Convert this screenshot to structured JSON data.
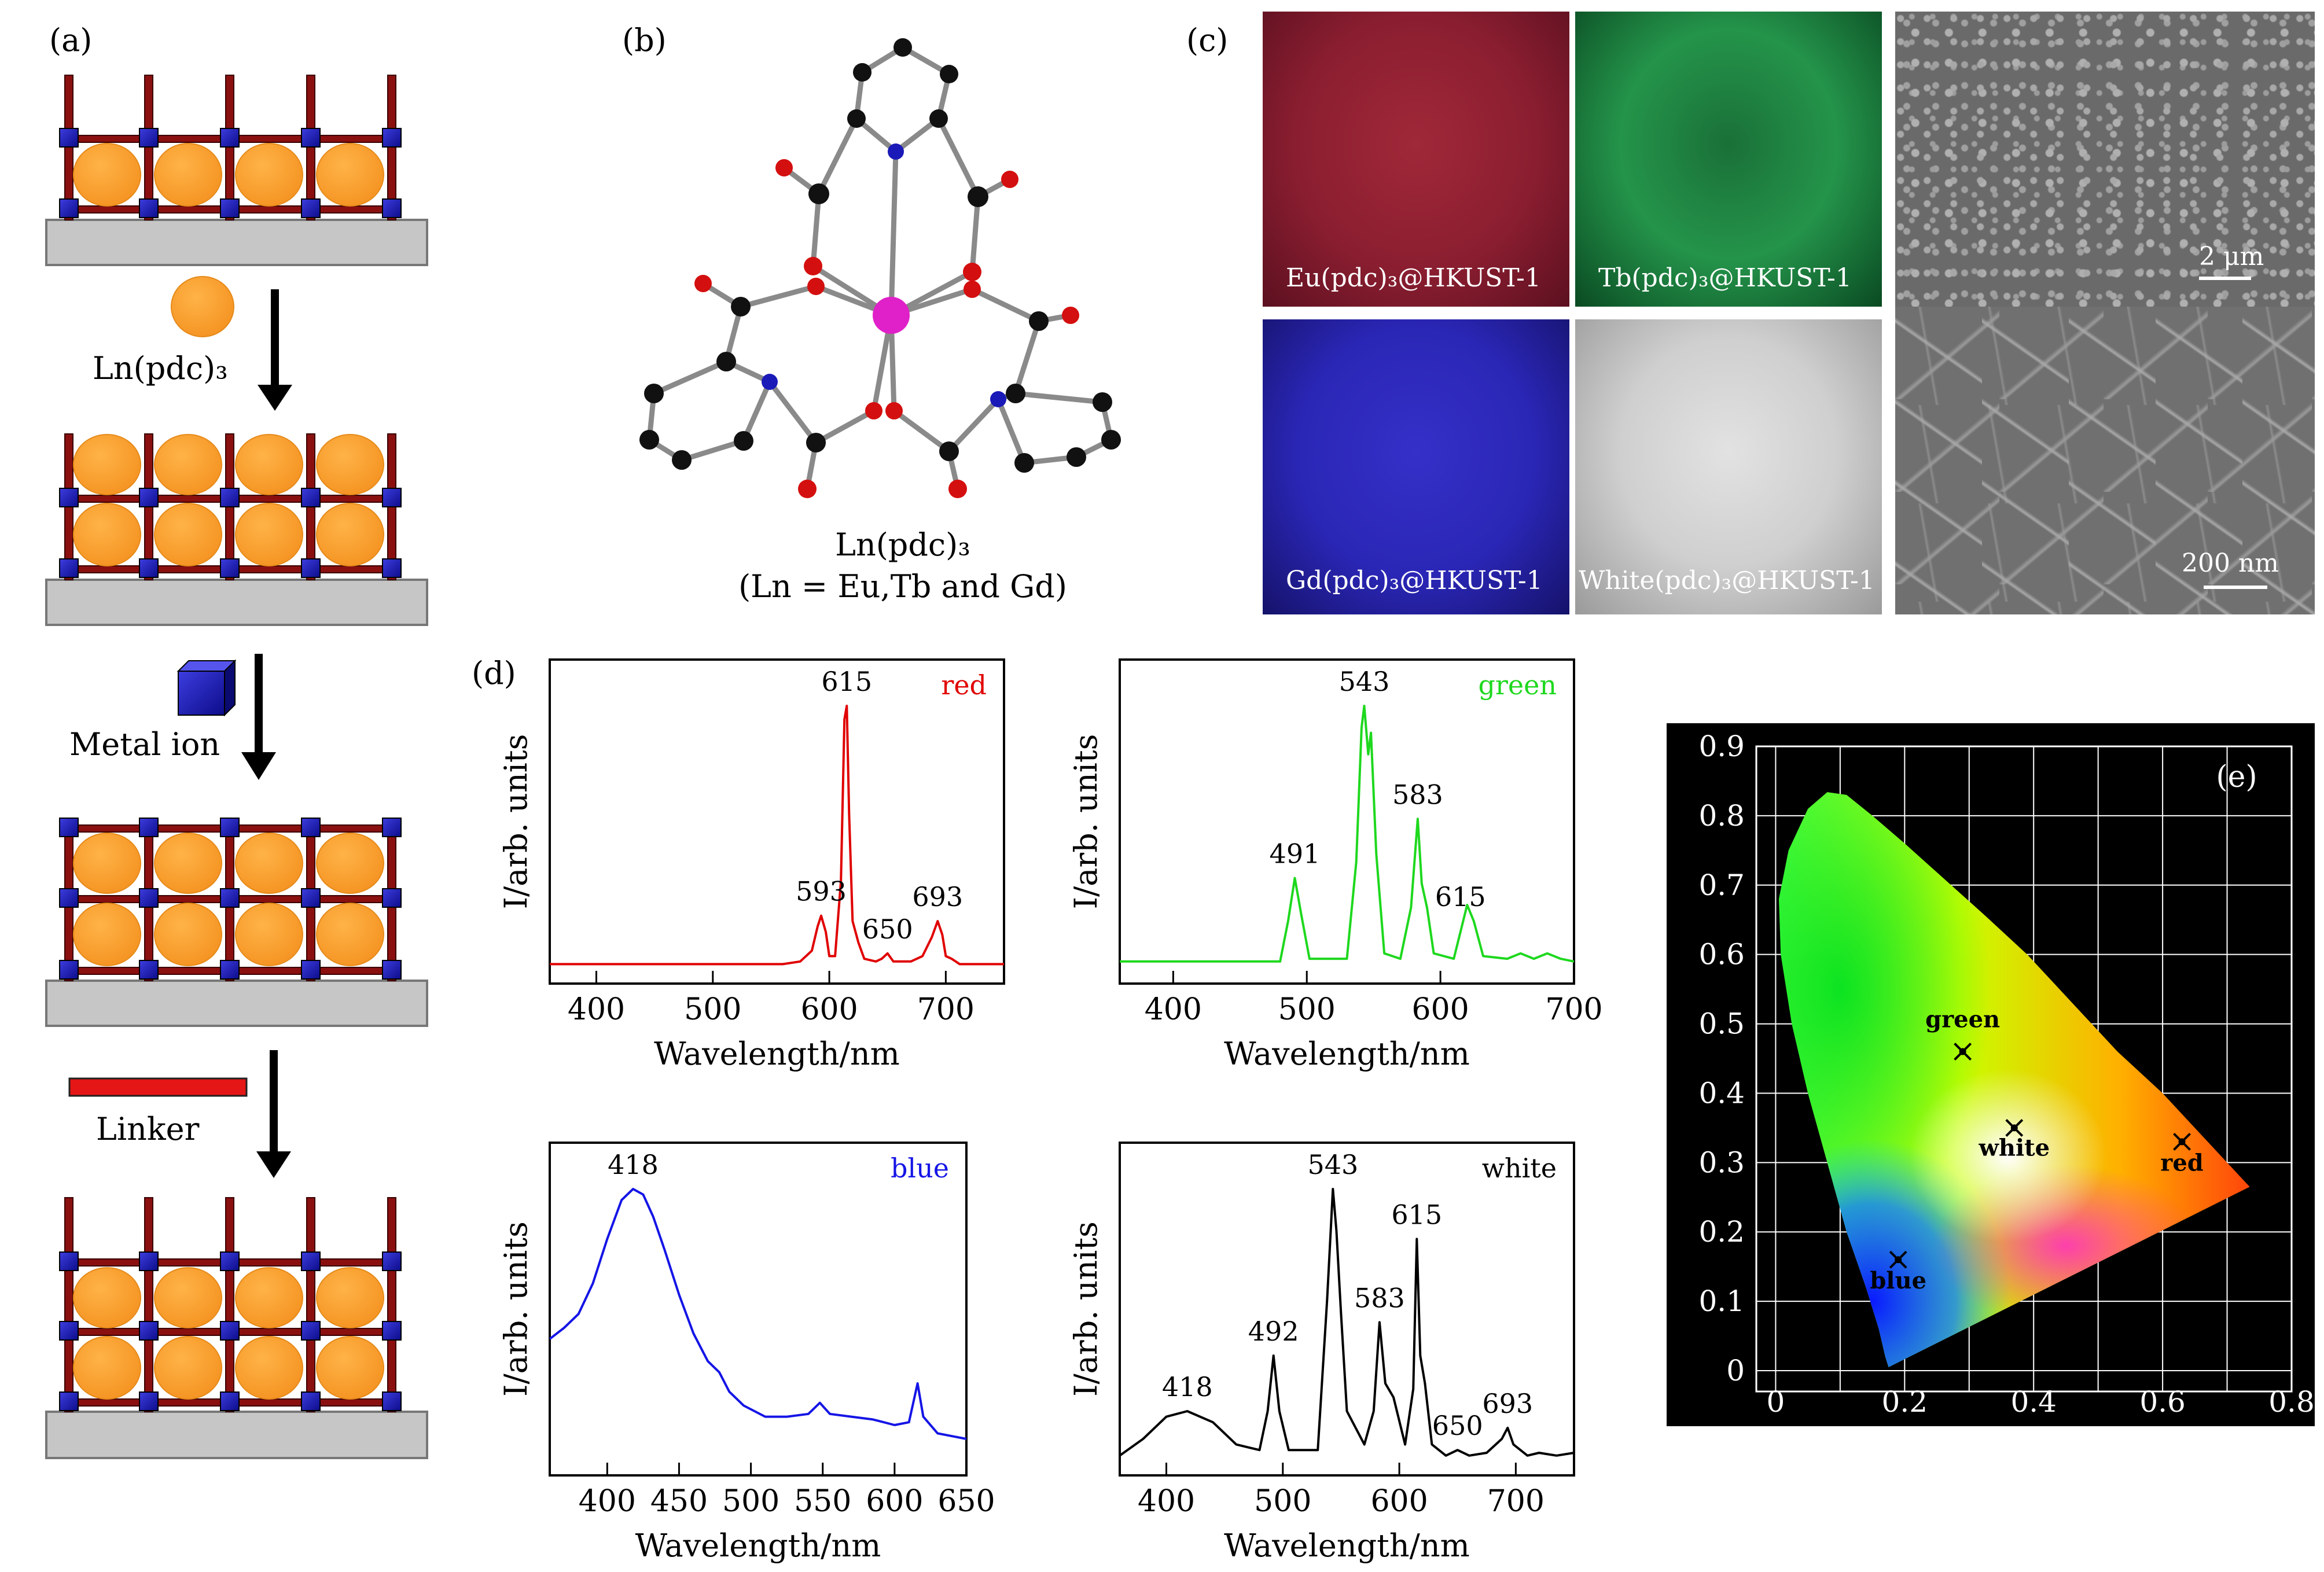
{
  "panel_labels": {
    "a": "(a)",
    "b": "(b)",
    "c": "(c)",
    "d": "(d)",
    "e": "(e)"
  },
  "panel_a": {
    "step1_label": "Ln(pdc)₃",
    "step2_label": "Metal ion",
    "step3_label": "Linker"
  },
  "panel_b": {
    "caption_line1": "Ln(pdc)₃",
    "caption_line2": "(Ln = Eu,Tb and Gd)"
  },
  "panel_c": {
    "photos": [
      {
        "label": "Eu(pdc)₃@HKUST-1",
        "color": "#8a1e30"
      },
      {
        "label": "Tb(pdc)₃@HKUST-1",
        "color": "#1f8a44"
      },
      {
        "label": "Gd(pdc)₃@HKUST-1",
        "color": "#2a26b5"
      },
      {
        "label": "White(pdc)₃@HKUST-1",
        "color": "#cfcfcf"
      }
    ],
    "sem_top_scale": "2 μm",
    "sem_bottom_scale": "200 nm"
  },
  "chart_data": [
    {
      "type": "line",
      "name": "red",
      "legend": "red",
      "color": "#e00000",
      "xlabel": "Wavelength/nm",
      "ylabel": "I/arb. units",
      "xlim": [
        360,
        750
      ],
      "ylim": [
        0,
        1.1
      ],
      "xticks": [
        400,
        500,
        600,
        700
      ],
      "x": [
        360,
        560,
        575,
        585,
        590,
        593,
        597,
        600,
        605,
        610,
        613,
        615,
        617,
        620,
        625,
        630,
        640,
        645,
        650,
        655,
        670,
        680,
        688,
        693,
        697,
        700,
        705,
        712,
        750
      ],
      "y": [
        0.04,
        0.04,
        0.05,
        0.09,
        0.18,
        0.22,
        0.16,
        0.07,
        0.07,
        0.35,
        0.95,
        1.0,
        0.6,
        0.2,
        0.12,
        0.06,
        0.05,
        0.06,
        0.08,
        0.05,
        0.05,
        0.07,
        0.14,
        0.2,
        0.15,
        0.07,
        0.06,
        0.04,
        0.04
      ],
      "peak_labels": [
        {
          "x": 615,
          "text": "615"
        },
        {
          "x": 593,
          "text": "593"
        },
        {
          "x": 650,
          "text": "650"
        },
        {
          "x": 693,
          "text": "693"
        }
      ]
    },
    {
      "type": "line",
      "name": "green",
      "legend": "green",
      "color": "#1ed81e",
      "xlabel": "Wavelength/nm",
      "ylabel": "I/arb. units",
      "xlim": [
        360,
        700
      ],
      "ylim": [
        0,
        1.1
      ],
      "xticks": [
        400,
        500,
        600,
        700
      ],
      "x": [
        360,
        480,
        486,
        491,
        496,
        502,
        530,
        537,
        541,
        543,
        546,
        548,
        552,
        558,
        570,
        578,
        583,
        586,
        590,
        595,
        610,
        617,
        620,
        625,
        632,
        650,
        660,
        670,
        680,
        690,
        700
      ],
      "y": [
        0.05,
        0.05,
        0.2,
        0.36,
        0.22,
        0.06,
        0.06,
        0.42,
        0.92,
        1.0,
        0.82,
        0.9,
        0.45,
        0.08,
        0.06,
        0.25,
        0.58,
        0.34,
        0.25,
        0.08,
        0.06,
        0.2,
        0.26,
        0.2,
        0.07,
        0.06,
        0.08,
        0.06,
        0.08,
        0.06,
        0.05
      ],
      "peak_labels": [
        {
          "x": 491,
          "text": "491"
        },
        {
          "x": 543,
          "text": "543"
        },
        {
          "x": 583,
          "text": "583"
        },
        {
          "x": 615,
          "text": "615"
        }
      ]
    },
    {
      "type": "line",
      "name": "blue",
      "legend": "blue",
      "color": "#1515e6",
      "xlabel": "Wavelength/nm",
      "ylabel": "I/arb. units",
      "xlim": [
        360,
        650
      ],
      "ylim": [
        0,
        1.1
      ],
      "xticks": [
        400,
        450,
        500,
        550,
        600,
        650
      ],
      "x": [
        360,
        370,
        380,
        390,
        400,
        410,
        418,
        425,
        432,
        440,
        450,
        460,
        470,
        478,
        485,
        495,
        510,
        525,
        540,
        548,
        555,
        570,
        585,
        600,
        610,
        616,
        620,
        630,
        650
      ],
      "y": [
        0.46,
        0.5,
        0.55,
        0.66,
        0.82,
        0.96,
        1.0,
        0.98,
        0.9,
        0.78,
        0.62,
        0.48,
        0.38,
        0.34,
        0.27,
        0.22,
        0.18,
        0.18,
        0.19,
        0.23,
        0.19,
        0.18,
        0.17,
        0.15,
        0.16,
        0.3,
        0.18,
        0.12,
        0.1
      ],
      "peak_labels": [
        {
          "x": 418,
          "text": "418"
        }
      ]
    },
    {
      "type": "line",
      "name": "white",
      "legend": "white",
      "color": "#000000",
      "xlabel": "Wavelength/nm",
      "ylabel": "I/arb. units",
      "xlim": [
        360,
        750
      ],
      "ylim": [
        0,
        1.1
      ],
      "xticks": [
        400,
        500,
        600,
        700
      ],
      "x": [
        360,
        380,
        400,
        418,
        440,
        460,
        480,
        487,
        492,
        497,
        505,
        530,
        538,
        543,
        546,
        550,
        555,
        570,
        578,
        583,
        588,
        595,
        605,
        612,
        615,
        618,
        622,
        628,
        640,
        650,
        660,
        675,
        688,
        693,
        698,
        710,
        720,
        735,
        750
      ],
      "y": [
        0.04,
        0.1,
        0.18,
        0.2,
        0.16,
        0.08,
        0.06,
        0.2,
        0.4,
        0.2,
        0.06,
        0.06,
        0.6,
        1.0,
        0.85,
        0.55,
        0.2,
        0.08,
        0.2,
        0.52,
        0.3,
        0.25,
        0.08,
        0.28,
        0.82,
        0.4,
        0.3,
        0.08,
        0.04,
        0.06,
        0.04,
        0.05,
        0.1,
        0.14,
        0.08,
        0.04,
        0.05,
        0.04,
        0.05
      ],
      "peak_labels": [
        {
          "x": 418,
          "text": "418"
        },
        {
          "x": 492,
          "text": "492"
        },
        {
          "x": 543,
          "text": "543"
        },
        {
          "x": 583,
          "text": "583"
        },
        {
          "x": 615,
          "text": "615"
        },
        {
          "x": 650,
          "text": "650"
        },
        {
          "x": 693,
          "text": "693"
        }
      ]
    },
    {
      "type": "scatter",
      "name": "cie",
      "xlim": [
        -0.03,
        0.8
      ],
      "ylim": [
        -0.03,
        0.9
      ],
      "xticks": [
        0,
        0.2,
        0.4,
        0.6,
        0.8
      ],
      "yticks": [
        0,
        0.1,
        0.2,
        0.3,
        0.4,
        0.5,
        0.6,
        0.7,
        0.8,
        0.9
      ],
      "xtick_labels": [
        "0",
        "0.2",
        "0.4",
        "0.6",
        "0.8"
      ],
      "ytick_labels": [
        "0",
        "0.1",
        "0.2",
        "0.3",
        "0.4",
        "0.5",
        "0.6",
        "0.7",
        "0.8",
        "0.9"
      ],
      "points": [
        {
          "label": "green",
          "x": 0.29,
          "y": 0.46
        },
        {
          "label": "white",
          "x": 0.37,
          "y": 0.35
        },
        {
          "label": "red",
          "x": 0.63,
          "y": 0.33
        },
        {
          "label": "blue",
          "x": 0.19,
          "y": 0.16
        }
      ]
    }
  ]
}
